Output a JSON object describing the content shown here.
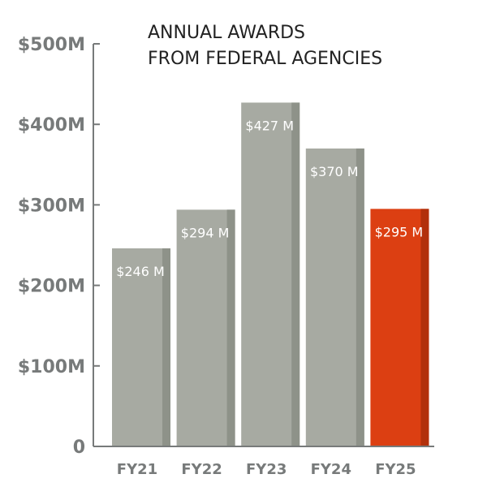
{
  "chart_data": {
    "type": "bar",
    "title_lines": [
      "ANNUAL AWARDS",
      "FROM FEDERAL AGENCIES"
    ],
    "categories": [
      "FY21",
      "FY22",
      "FY23",
      "FY24",
      "FY25"
    ],
    "values": [
      246,
      294,
      427,
      370,
      295
    ],
    "value_labels": [
      "$246 M",
      "$294 M",
      "$427 M",
      "$370 M",
      "$295 M"
    ],
    "ylim": [
      0,
      500
    ],
    "y_ticks": [
      0,
      100,
      200,
      300,
      400,
      500
    ],
    "y_tick_labels": [
      "0",
      "$100M",
      "$200M",
      "$300M",
      "$400M",
      "$500M"
    ],
    "colors": {
      "bar": "#a7aaa2",
      "bar_shade": "#8e9289",
      "highlight": "#dc3f12",
      "highlight_shade": "#b2300b",
      "axis": "#777a7a"
    },
    "highlight_index": 4,
    "grid": false
  }
}
